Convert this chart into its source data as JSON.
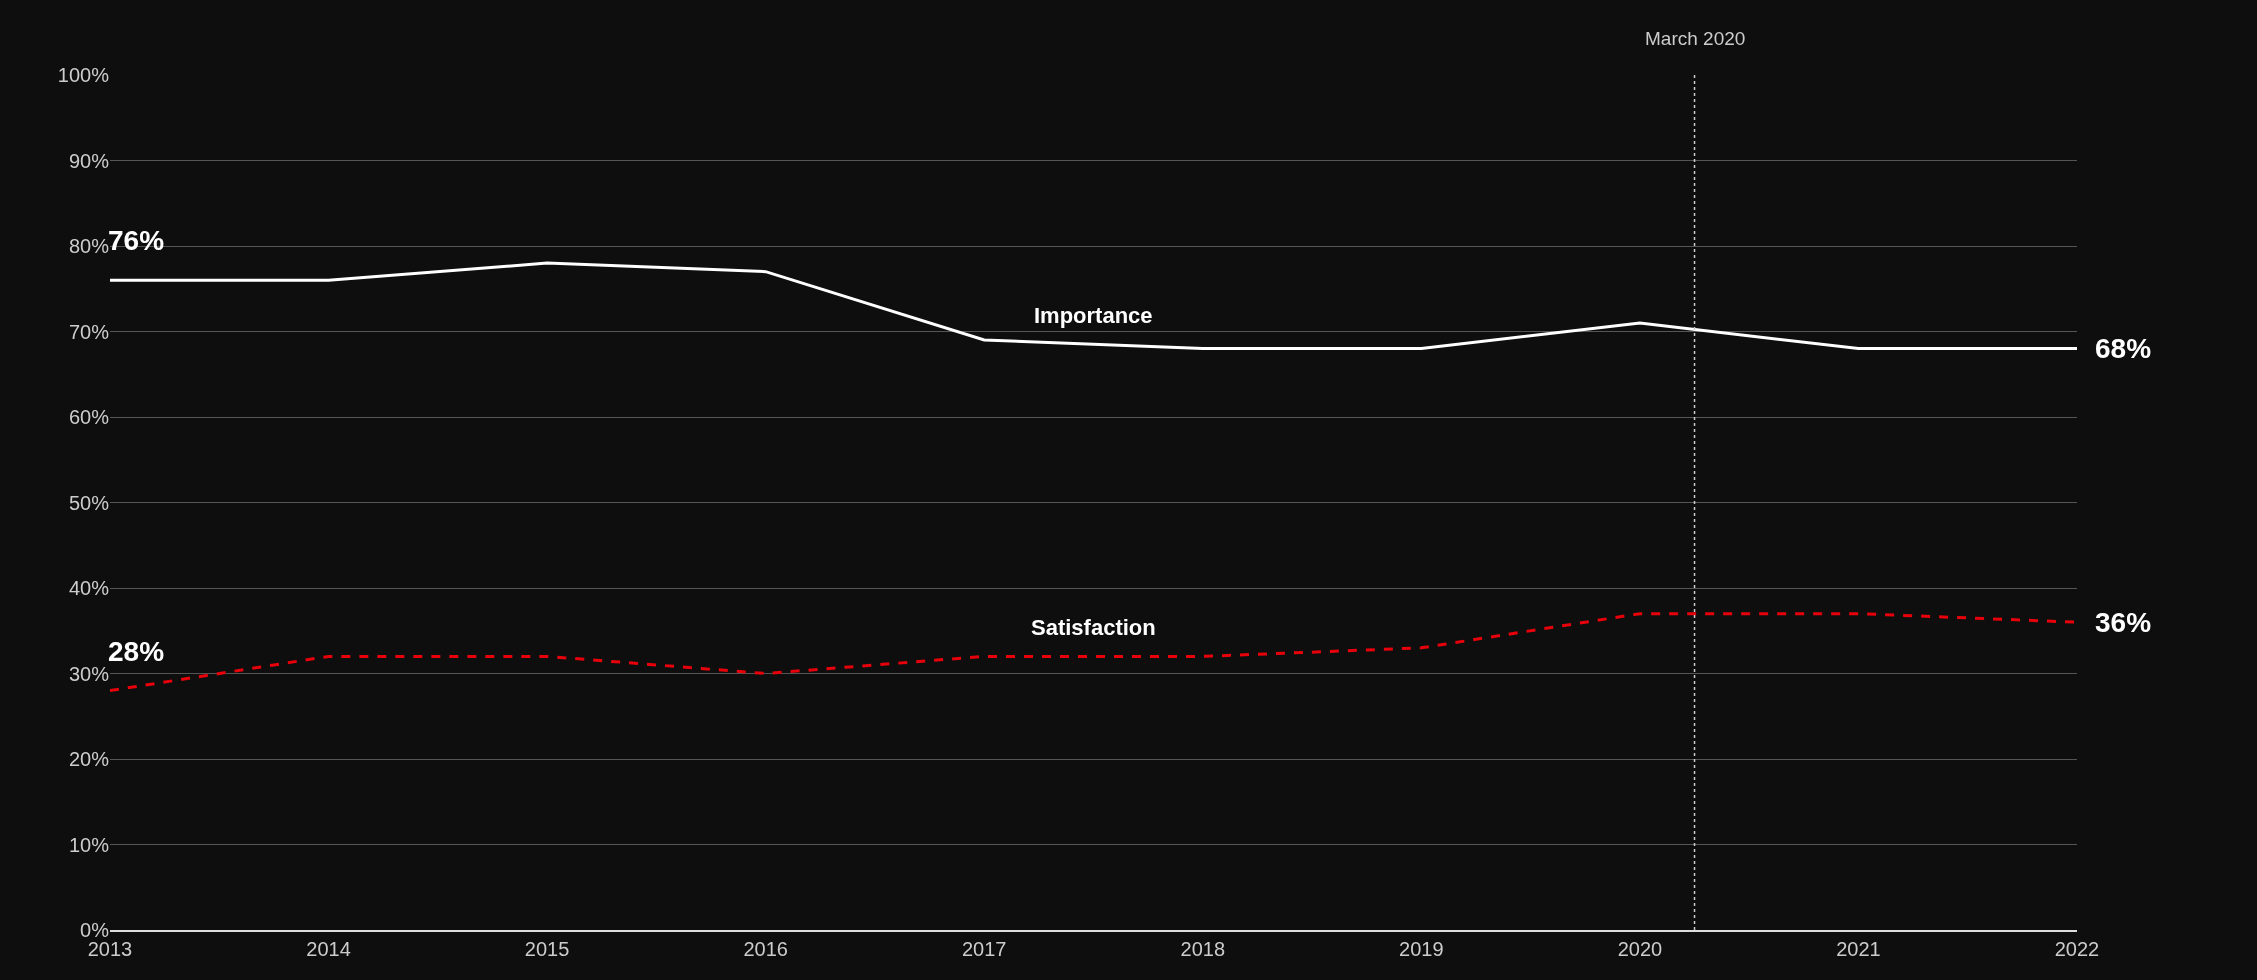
{
  "chart_data": {
    "type": "line",
    "x": [
      2013,
      2014,
      2015,
      2016,
      2017,
      2018,
      2019,
      2020,
      2021,
      2022
    ],
    "series": [
      {
        "name": "Importance",
        "color": "#ffffff",
        "line_style": "solid",
        "values": [
          76,
          76,
          78,
          77,
          69,
          68,
          68,
          71,
          68,
          68
        ],
        "value_labels": [
          "76%",
          null,
          null,
          null,
          null,
          null,
          null,
          null,
          null,
          "68%"
        ]
      },
      {
        "name": "Satisfaction",
        "color": "#e8000b",
        "line_style": "dashed",
        "values": [
          28,
          32,
          32,
          30,
          32,
          32,
          33,
          37,
          37,
          36
        ],
        "value_labels": [
          "28%",
          null,
          null,
          null,
          null,
          null,
          null,
          null,
          null,
          "36%"
        ]
      }
    ],
    "xlim": [
      2013,
      2022
    ],
    "xticks": [
      2013,
      2014,
      2015,
      2016,
      2017,
      2018,
      2019,
      2020,
      2021,
      2022
    ],
    "ylim": [
      0,
      100
    ],
    "yticks": [
      {
        "value": 0,
        "label": "0%"
      },
      {
        "value": 10,
        "label": "10%"
      },
      {
        "value": 20,
        "label": "20%"
      },
      {
        "value": 30,
        "label": "30%"
      },
      {
        "value": 40,
        "label": "40%"
      },
      {
        "value": 50,
        "label": "50%"
      },
      {
        "value": 60,
        "label": "60%"
      },
      {
        "value": 70,
        "label": "70%"
      },
      {
        "value": 80,
        "label": "80%"
      },
      {
        "value": 90,
        "label": "90%"
      },
      {
        "value": 100,
        "label": "100%"
      }
    ],
    "grid": "y",
    "legend": false,
    "marker": "none",
    "ref_lines": [
      {
        "axis": "x",
        "value": 2020.25,
        "label": "March 2020",
        "color": "#cccccc",
        "line_style": "dotted"
      }
    ]
  }
}
